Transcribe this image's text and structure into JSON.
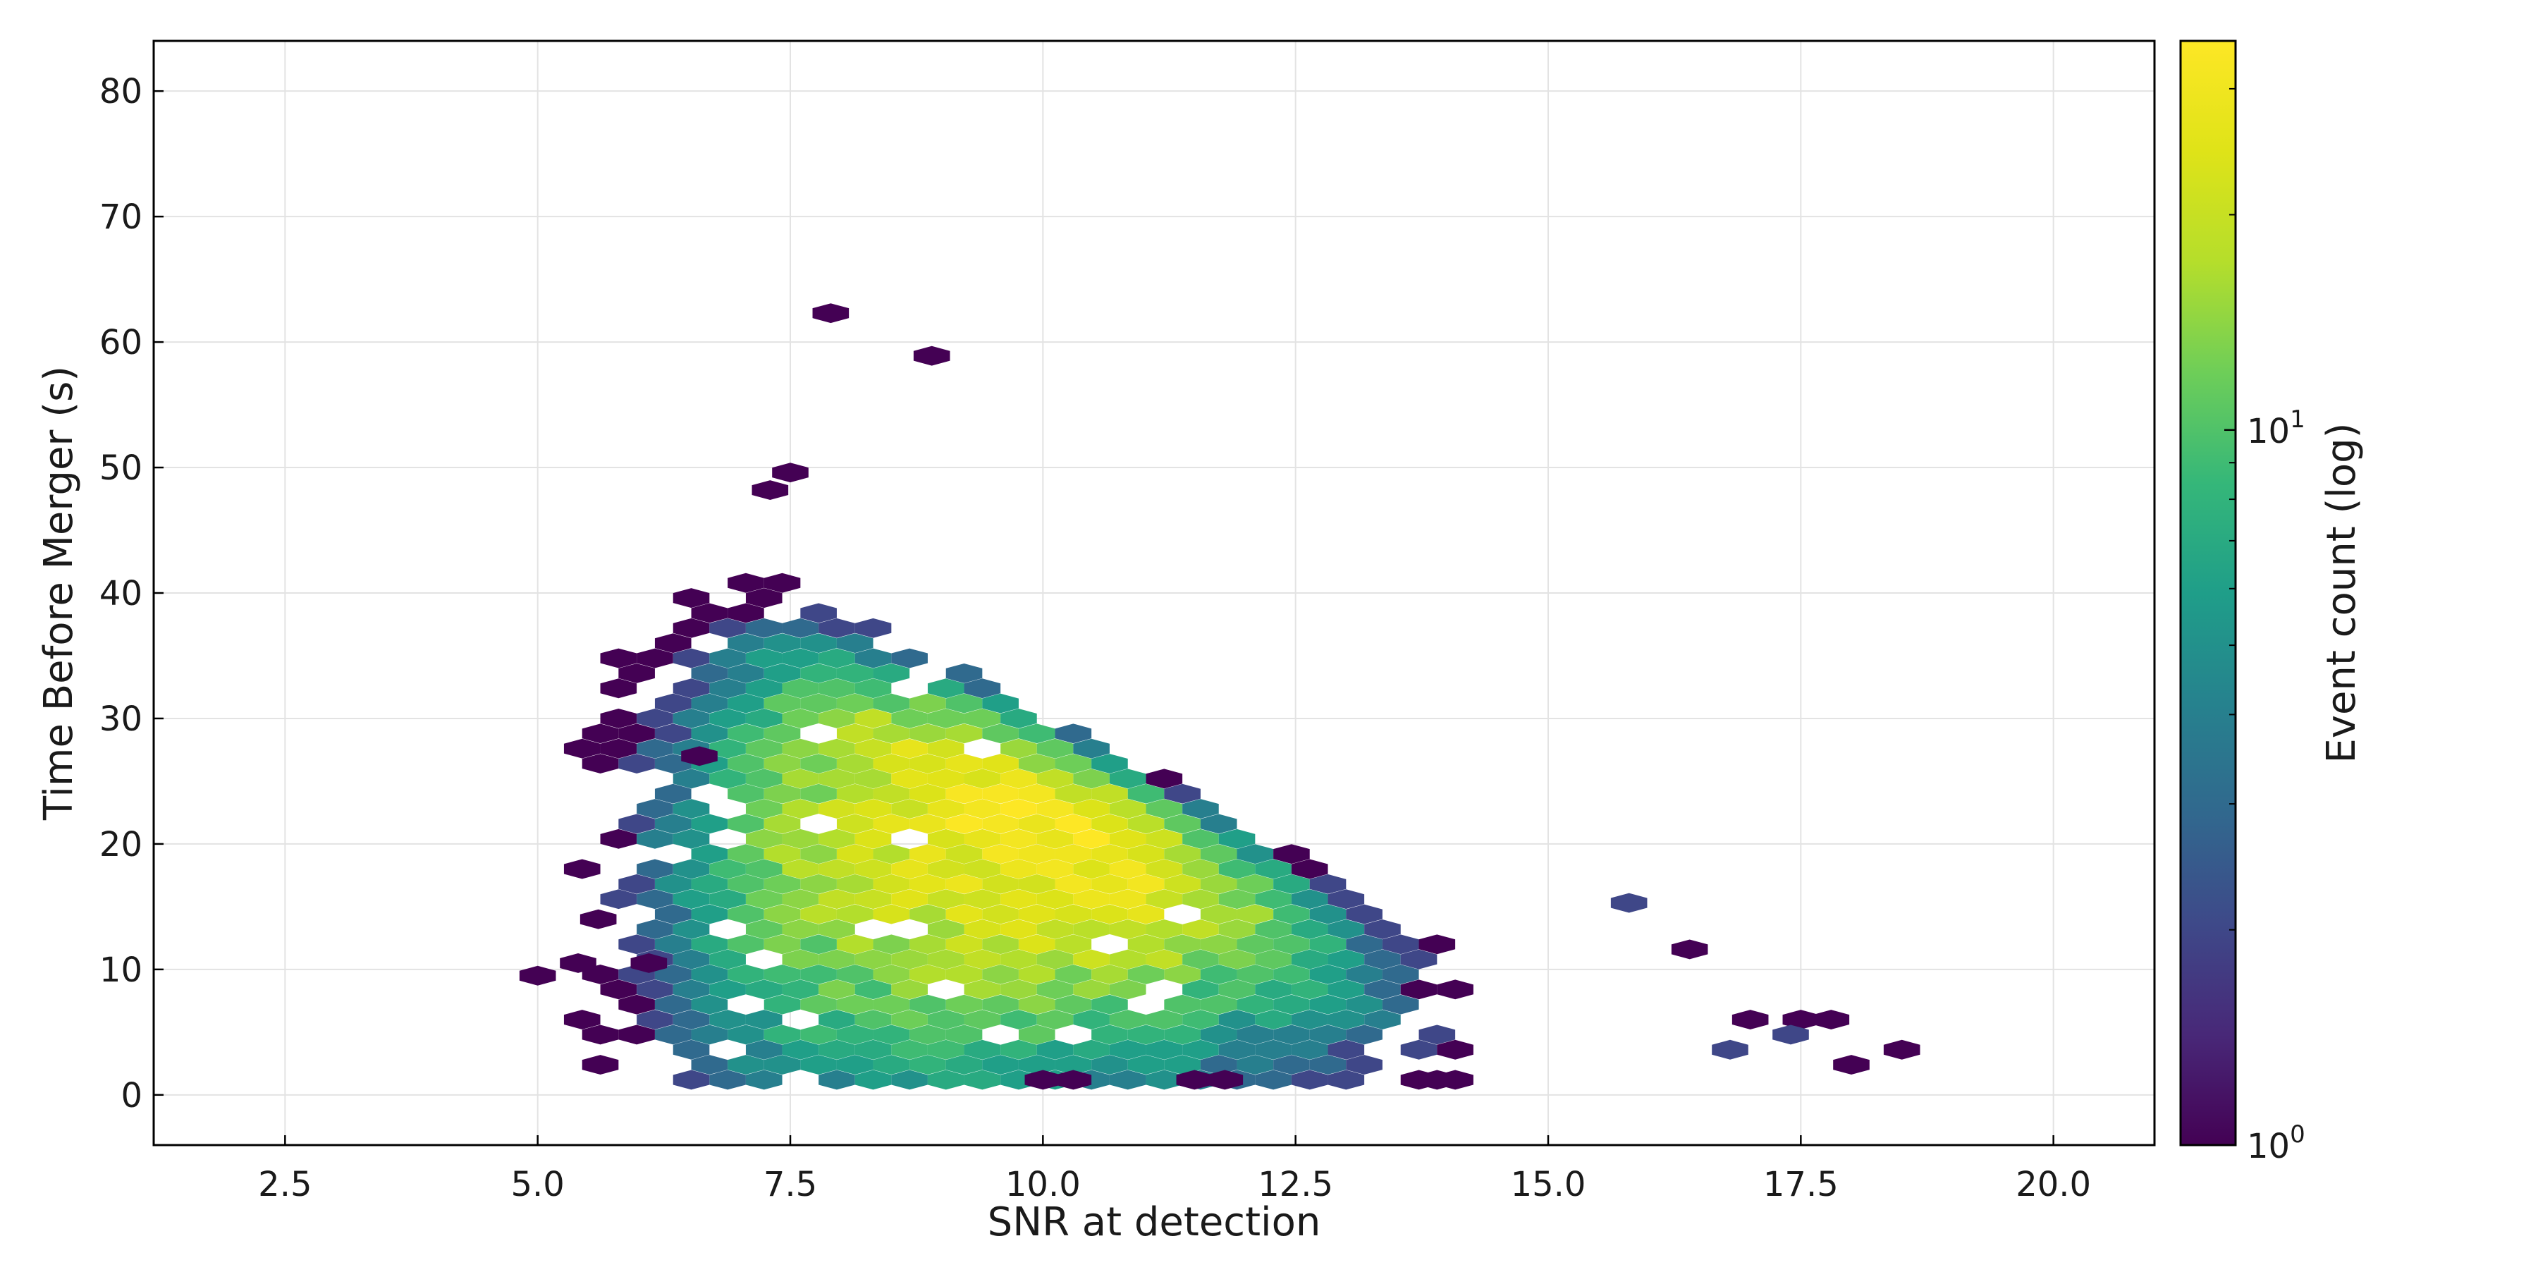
{
  "chart_data": {
    "type": "heatmap",
    "subtype": "hexbin",
    "title": "",
    "xlabel": "SNR at detection",
    "ylabel": "Time Before Merger (s)",
    "xlim": [
      1.2,
      21.0
    ],
    "ylim": [
      -4,
      84
    ],
    "x_ticks": [
      2.5,
      5.0,
      7.5,
      10.0,
      12.5,
      15.0,
      17.5,
      20.0
    ],
    "x_tick_labels": [
      "2.5",
      "5.0",
      "7.5",
      "10.0",
      "12.5",
      "15.0",
      "17.5",
      "20.0"
    ],
    "y_ticks": [
      0,
      10,
      20,
      30,
      40,
      50,
      60,
      70,
      80
    ],
    "y_tick_labels": [
      "0",
      "10",
      "20",
      "30",
      "40",
      "50",
      "60",
      "70",
      "80"
    ],
    "grid": true,
    "colorbar": {
      "label": "Event count (log)",
      "scale": "log",
      "colormap": "viridis",
      "min": 1,
      "max": 35,
      "tick_values": [
        1,
        10
      ],
      "tick_labels": [
        {
          "base": "10",
          "exp": "0"
        },
        {
          "base": "10",
          "exp": "1"
        }
      ]
    },
    "distribution": {
      "description_of_values": "hexagonal bins of event counts; peak count about 35 near SNR 11, 25 s",
      "peak_count": 35,
      "peak_snr": 10.9,
      "peak_time_s": 26,
      "snr_range": [
        5.0,
        18.5
      ],
      "time_range_s": [
        1,
        62
      ]
    },
    "isolated_bins": [
      {
        "x": 5.0,
        "y": 9.5,
        "count": 1
      },
      {
        "x": 5.4,
        "y": 10.5,
        "count": 1
      },
      {
        "x": 5.6,
        "y": 14.0,
        "count": 1
      },
      {
        "x": 6.1,
        "y": 10.5,
        "count": 1
      },
      {
        "x": 7.9,
        "y": 62.3,
        "count": 1
      },
      {
        "x": 8.9,
        "y": 58.9,
        "count": 1
      },
      {
        "x": 7.3,
        "y": 48.2,
        "count": 1
      },
      {
        "x": 7.5,
        "y": 49.6,
        "count": 1
      },
      {
        "x": 6.6,
        "y": 27.0,
        "count": 1
      },
      {
        "x": 15.8,
        "y": 15.3,
        "count": 2
      },
      {
        "x": 16.4,
        "y": 11.6,
        "count": 1
      },
      {
        "x": 17.0,
        "y": 6.0,
        "count": 1
      },
      {
        "x": 17.5,
        "y": 6.0,
        "count": 1
      },
      {
        "x": 17.8,
        "y": 6.0,
        "count": 1
      },
      {
        "x": 18.0,
        "y": 2.4,
        "count": 1
      },
      {
        "x": 18.5,
        "y": 3.6,
        "count": 1
      },
      {
        "x": 16.8,
        "y": 3.6,
        "count": 2
      },
      {
        "x": 17.4,
        "y": 4.8,
        "count": 2
      },
      {
        "x": 13.9,
        "y": 1.2,
        "count": 1
      },
      {
        "x": 10.0,
        "y": 1.2,
        "count": 1
      },
      {
        "x": 10.3,
        "y": 1.2,
        "count": 1
      },
      {
        "x": 11.5,
        "y": 1.2,
        "count": 1
      },
      {
        "x": 11.8,
        "y": 1.2,
        "count": 1
      }
    ]
  }
}
